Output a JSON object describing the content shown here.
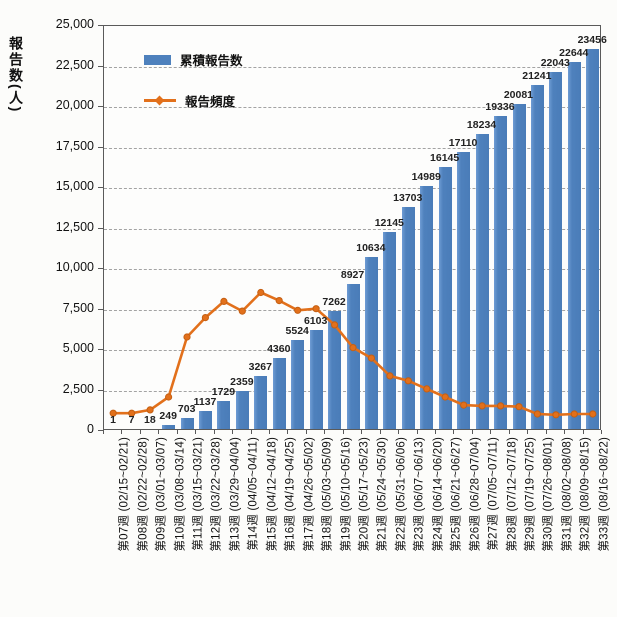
{
  "chart_data": {
    "type": "bar+line",
    "title": "",
    "ylabel": "報告数(人)",
    "xlabel": "",
    "ylim": [
      0,
      25000
    ],
    "ytick_step": 2500,
    "ytick_labels": [
      "25,000",
      "22,500",
      "20,000",
      "17,500",
      "15,000",
      "12,500",
      "10,000",
      "7,500",
      "5,000",
      "2,500",
      "0"
    ],
    "ytick_values": [
      25000,
      22500,
      20000,
      17500,
      15000,
      12500,
      10000,
      7500,
      5000,
      2500,
      0
    ],
    "grid": "horizontal-dashed",
    "legend_position": "top-left-inside",
    "categories": [
      "第07週 (02/15~02/21)",
      "第08週 (02/22~02/28)",
      "第09週 (03/01~03/07)",
      "第10週 (03/08~03/14)",
      "第11週 (03/15~03/21)",
      "第12週 (03/22~03/28)",
      "第13週 (03/29~04/04)",
      "第14週 (04/05~04/11)",
      "第15週 (04/12~04/18)",
      "第16週 (04/19~04/25)",
      "第17週 (04/26~05/02)",
      "第18週 (05/03~05/09)",
      "第19週 (05/10~05/16)",
      "第20週 (05/17~05/23)",
      "第21週 (05/24~05/30)",
      "第22週 (05/31~06/06)",
      "第23週 (06/07~06/13)",
      "第24週 (06/14~06/20)",
      "第25週 (06/21~06/27)",
      "第26週 (06/28~07/04)",
      "第27週 (07/05~07/11)",
      "第28週 (07/12~07/18)",
      "第29週 (07/19~07/25)",
      "第30週 (07/26~08/01)",
      "第31週 (08/02~08/08)",
      "第32週 (08/09~08/15)",
      "第33週 (08/16~08/22)"
    ],
    "series": [
      {
        "name": "累積報告数",
        "type": "bar",
        "color": "#4E81BD",
        "data_labels": true,
        "values": [
          1,
          7,
          18,
          249,
          703,
          1137,
          1729,
          2359,
          3267,
          4360,
          5524,
          6103,
          7262,
          8927,
          10634,
          12145,
          13703,
          14989,
          16145,
          17110,
          18234,
          19336,
          20081,
          21241,
          22043,
          22644,
          23456
        ]
      },
      {
        "name": "報告頻度",
        "type": "line",
        "color": "#E2701B",
        "marker": "circle",
        "values": [
          1100,
          1100,
          1300,
          2100,
          5800,
          7000,
          8000,
          7400,
          8550,
          8050,
          7450,
          7550,
          6550,
          5150,
          4500,
          3400,
          3100,
          2600,
          2100,
          1600,
          1550,
          1550,
          1500,
          1050,
          1000,
          1050,
          1050
        ]
      }
    ]
  },
  "colors": {
    "bar": "#4E81BD",
    "line": "#E2701B",
    "grid": "#A3A3A3",
    "axis": "#5A5A5A",
    "text": "#1A1A1A",
    "background": "#FCFCFA"
  }
}
